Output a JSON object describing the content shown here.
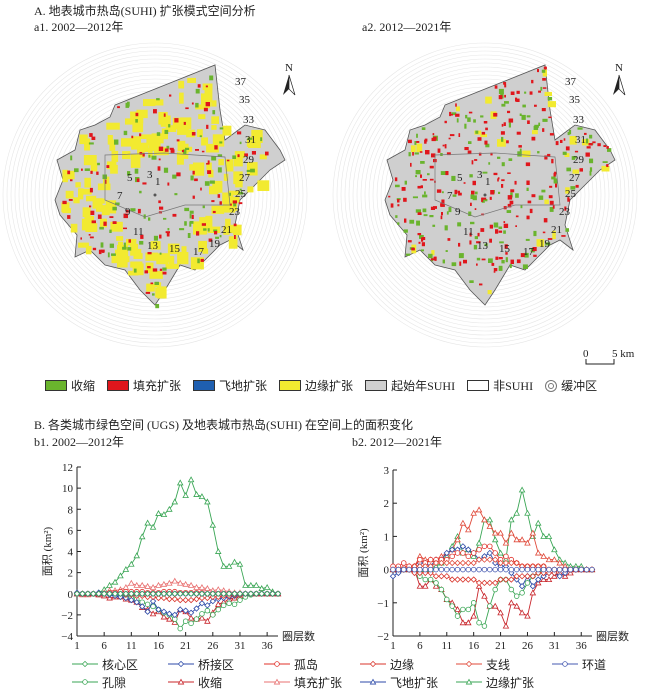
{
  "section_a": {
    "title": "A. 地表城市热岛(SUHI) 扩张模式空间分析",
    "map1_title": "a1. 2002—2012年",
    "map2_title": "a2. 2012—2021年",
    "ring_labels": [
      "1",
      "3",
      "5",
      "7",
      "9",
      "11",
      "13",
      "15",
      "17",
      "19",
      "21",
      "23",
      "25",
      "27",
      "29",
      "31",
      "33",
      "35",
      "37"
    ],
    "north_label": "N",
    "scale_bar": {
      "start": "0",
      "end": "5 km"
    },
    "legend": [
      {
        "label": "收缩",
        "color": "#6ab42d"
      },
      {
        "label": "填充扩张",
        "color": "#e0161c"
      },
      {
        "label": "飞地扩张",
        "color": "#1f5fb0"
      },
      {
        "label": "边缘扩张",
        "color": "#f2ea30"
      },
      {
        "label": "起始年SUHI",
        "color": "#cfcfcf"
      },
      {
        "label": "非SUHI",
        "color": "#ffffff"
      },
      {
        "label": "缓冲区",
        "color": "none"
      }
    ]
  },
  "section_b": {
    "title": "B. 各类城市绿色空间 (UGS) 及地表城市热岛(SUHI) 在空间上的面积变化",
    "chart1_title": "b1. 2002—2012年",
    "chart2_title": "b2. 2012—2021年",
    "legend": [
      {
        "label": "核心区",
        "color": "#3aa655",
        "marker": "diamond"
      },
      {
        "label": "桥接区",
        "color": "#2c4aa8",
        "marker": "diamond"
      },
      {
        "label": "孤岛",
        "color": "#e0302a",
        "marker": "circle"
      },
      {
        "label": "边缘",
        "color": "#d9342b",
        "marker": "diamond"
      },
      {
        "label": "支线",
        "color": "#e04a3a",
        "marker": "diamond"
      },
      {
        "label": "环道",
        "color": "#4458b0",
        "marker": "circle"
      },
      {
        "label": "孔隙",
        "color": "#3aa655",
        "marker": "circle"
      },
      {
        "label": "收缩",
        "color": "#c8242a",
        "marker": "triangle"
      },
      {
        "label": "填充扩张",
        "color": "#e87070",
        "marker": "triangle"
      },
      {
        "label": "飞地扩张",
        "color": "#2c4aa8",
        "marker": "triangle"
      },
      {
        "label": "边缘扩张",
        "color": "#3aa655",
        "marker": "triangle"
      }
    ]
  },
  "chart_data": [
    {
      "type": "line",
      "title": "b1. 2002—2012年",
      "xlabel": "圈层数",
      "ylabel": "面积 (km²)",
      "ylim": [
        -4,
        12
      ],
      "yticks": [
        -4,
        -2,
        0,
        2,
        4,
        6,
        8,
        10,
        12
      ],
      "xlim": [
        1,
        38
      ],
      "xticks": [
        1,
        6,
        11,
        16,
        21,
        26,
        31,
        36
      ],
      "x": [
        1,
        2,
        3,
        4,
        5,
        6,
        7,
        8,
        9,
        10,
        11,
        12,
        13,
        14,
        15,
        16,
        17,
        18,
        19,
        20,
        21,
        22,
        23,
        24,
        25,
        26,
        27,
        28,
        29,
        30,
        31,
        32,
        33,
        34,
        35,
        36,
        37,
        38
      ],
      "series": [
        {
          "name": "边缘扩张",
          "color": "#3aa655",
          "marker": "triangle",
          "values": [
            0,
            0,
            0,
            0,
            0.1,
            0.4,
            0.8,
            1.1,
            1.7,
            2.3,
            2.8,
            3.6,
            5.4,
            6.7,
            6.3,
            7.6,
            7.5,
            8.0,
            8.7,
            10.5,
            9.3,
            10.8,
            9.4,
            9.2,
            8.7,
            6.5,
            4.0,
            2.6,
            2.6,
            3.0,
            2.8,
            0.8,
            0.8,
            0.8,
            0.5,
            0.6,
            0.2,
            0
          ]
        },
        {
          "name": "填充扩张",
          "color": "#e87070",
          "marker": "triangle",
          "values": [
            0,
            -0.1,
            -0.1,
            0,
            -0.1,
            0.1,
            0.3,
            0.3,
            0.4,
            0.6,
            1.0,
            0.8,
            0.8,
            0.7,
            0.6,
            0.8,
            0.9,
            1.0,
            1.2,
            1.0,
            0.9,
            0.8,
            0.6,
            0.6,
            0.5,
            0.3,
            0.4,
            0.3,
            0.2,
            0.1,
            0.1,
            0,
            0,
            0,
            0,
            0,
            0,
            0
          ]
        },
        {
          "name": "收缩",
          "color": "#c8242a",
          "marker": "triangle",
          "values": [
            0,
            0,
            0,
            0,
            -0.1,
            -0.2,
            -0.4,
            -0.3,
            -0.3,
            -0.5,
            -0.6,
            -0.8,
            -1.3,
            -1.5,
            -1.9,
            -1.7,
            -2.2,
            -2.4,
            -2.7,
            -1.5,
            -1.7,
            -2.3,
            -2.4,
            -2.3,
            -2.6,
            -1.8,
            -1.0,
            -0.8,
            -0.5,
            -0.4,
            -0.2,
            0,
            0,
            0,
            0,
            0,
            0,
            0
          ]
        },
        {
          "name": "孔隙",
          "color": "#3aa655",
          "marker": "circle",
          "values": [
            0,
            0,
            0,
            0,
            0,
            0,
            0,
            0,
            -0.1,
            -0.2,
            -0.3,
            -0.5,
            -0.8,
            -1.0,
            -1.2,
            -1.5,
            -1.8,
            -2.0,
            -2.4,
            -3.3,
            -2.6,
            -2.8,
            -2.4,
            -1.9,
            -1.6,
            -2.0,
            -1.5,
            -1.1,
            -0.9,
            -1.0,
            -0.6,
            -0.3,
            -0.1,
            0,
            0,
            0,
            0,
            0
          ]
        },
        {
          "name": "桥接区",
          "color": "#2c4aa8",
          "marker": "diamond",
          "values": [
            0.1,
            0,
            0,
            0,
            0.1,
            0,
            -0.1,
            -0.2,
            -0.3,
            -0.4,
            -0.6,
            -0.8,
            -1.2,
            -1.7,
            -0.7,
            -1.5,
            -1.7,
            -1.9,
            -2.0,
            -1.5,
            -1.6,
            -1.8,
            -1.4,
            -0.9,
            -1.1,
            -0.7,
            -0.5,
            -0.4,
            -0.3,
            -0.2,
            -0.1,
            0,
            0,
            0,
            0,
            0,
            0,
            0
          ]
        },
        {
          "name": "边缘",
          "color": "#d9342b",
          "marker": "diamond",
          "values": [
            0,
            0,
            0,
            0,
            0,
            0,
            0,
            0,
            0,
            -0.1,
            -0.1,
            -0.2,
            -0.2,
            -0.3,
            -0.3,
            -0.4,
            -0.4,
            -0.5,
            -0.5,
            -0.6,
            -0.6,
            -0.6,
            -0.5,
            -0.4,
            -0.4,
            -0.3,
            -0.3,
            -0.2,
            -0.2,
            -0.1,
            -0.1,
            0,
            0,
            0,
            0,
            0,
            0,
            0
          ]
        },
        {
          "name": "孤岛",
          "color": "#e0302a",
          "marker": "circle",
          "values": [
            0,
            0,
            0,
            0,
            0,
            0,
            0.1,
            0.1,
            0.2,
            0.2,
            0.2,
            0.2,
            0.2,
            0.1,
            0.1,
            0.1,
            0.2,
            0.2,
            0.2,
            0.1,
            0.1,
            0.1,
            0.1,
            0.1,
            0,
            0,
            0,
            0,
            0,
            0,
            0,
            0,
            0,
            0,
            0,
            0,
            0,
            0
          ]
        },
        {
          "name": "环道",
          "color": "#4458b0",
          "marker": "circle",
          "values": [
            0,
            0,
            0,
            0,
            0,
            0,
            0,
            0,
            0,
            0,
            0,
            0,
            0,
            0,
            0,
            0,
            0,
            0,
            0,
            0,
            0,
            0,
            0,
            0,
            0,
            0,
            0,
            0,
            0,
            0,
            0,
            0,
            0,
            0,
            0,
            0,
            0,
            0
          ]
        },
        {
          "name": "核心区",
          "color": "#3aa655",
          "marker": "diamond",
          "values": [
            0,
            0,
            0,
            0,
            0,
            0,
            0,
            0,
            0,
            0,
            0,
            0,
            0,
            0,
            0,
            0,
            0,
            0,
            0,
            0,
            0,
            0,
            0,
            0,
            0,
            0,
            0,
            0,
            0,
            0,
            0,
            0,
            0,
            0,
            0,
            0,
            0,
            0
          ]
        }
      ]
    },
    {
      "type": "line",
      "title": "b2. 2012—2021年",
      "xlabel": "圈层数",
      "ylabel": "面积 (km²)",
      "ylim": [
        -2,
        3
      ],
      "yticks": [
        -2,
        -1,
        0,
        1,
        2,
        3
      ],
      "xlim": [
        1,
        38
      ],
      "xticks": [
        1,
        6,
        11,
        16,
        21,
        26,
        31,
        36
      ],
      "x": [
        1,
        2,
        3,
        4,
        5,
        6,
        7,
        8,
        9,
        10,
        11,
        12,
        13,
        14,
        15,
        16,
        17,
        18,
        19,
        20,
        21,
        22,
        23,
        24,
        25,
        26,
        27,
        28,
        29,
        30,
        31,
        32,
        33,
        34,
        35,
        36,
        37,
        38
      ],
      "series": [
        {
          "name": "边缘扩张",
          "color": "#3aa655",
          "marker": "triangle",
          "values": [
            0,
            0,
            0,
            0,
            0,
            0,
            0,
            0,
            0.1,
            0.2,
            0.4,
            0.7,
            1.0,
            0.5,
            0.6,
            0.4,
            0.8,
            1.5,
            1.5,
            0.9,
            0.5,
            0.3,
            1.5,
            1.7,
            2.4,
            1.7,
            1.0,
            1.4,
            1.0,
            1.0,
            0.6,
            0.3,
            0.2,
            0.1,
            0.1,
            0.1,
            0,
            0
          ]
        },
        {
          "name": "填充扩张",
          "color": "#e04a3a",
          "marker": "triangle",
          "values": [
            0,
            0,
            0.1,
            0.1,
            0.1,
            0.4,
            0.3,
            0.3,
            0.3,
            0.4,
            0.5,
            0.6,
            0.9,
            1.4,
            1.2,
            1.7,
            1.8,
            1.5,
            1.3,
            1.1,
            1.1,
            0.8,
            1.1,
            0.9,
            0.9,
            0.8,
            1.1,
            0.5,
            0.4,
            0.3,
            0.3,
            0.2,
            0.1,
            0,
            0,
            0,
            0,
            0
          ]
        },
        {
          "name": "收缩",
          "color": "#c8242a",
          "marker": "triangle",
          "values": [
            0,
            0,
            0,
            0,
            0,
            -0.5,
            -0.5,
            -0.3,
            -0.5,
            -0.6,
            -0.9,
            -1.0,
            -1.2,
            -1.6,
            -1.6,
            -1.4,
            -0.5,
            -0.8,
            -1.1,
            -1.1,
            -1.3,
            -1.7,
            -1.0,
            -1.1,
            -1.3,
            -1.4,
            -0.7,
            -0.4,
            -0.3,
            -0.3,
            -0.2,
            -0.1,
            -0.2,
            -0.1,
            0,
            0,
            0,
            0
          ]
        },
        {
          "name": "孔隙",
          "color": "#3aa655",
          "marker": "circle",
          "values": [
            0,
            0,
            0,
            0,
            0,
            -0.2,
            -0.3,
            -0.3,
            -0.4,
            -0.6,
            -0.9,
            -1.1,
            -1.4,
            -1.2,
            -1.2,
            -1.0,
            -1.6,
            -1.7,
            -1.1,
            -0.6,
            -0.3,
            -0.3,
            -0.6,
            -0.8,
            -0.7,
            -0.4,
            -0.2,
            -0.1,
            0,
            0,
            0,
            0,
            0,
            0,
            0,
            0,
            0,
            0
          ]
        },
        {
          "name": "桥接区",
          "color": "#2c4aa8",
          "marker": "diamond",
          "values": [
            -0.2,
            -0.1,
            0,
            0,
            0,
            0.2,
            0.2,
            0.1,
            0.3,
            0.3,
            0.5,
            0.6,
            0.6,
            0.7,
            0.6,
            0.5,
            0.3,
            0.4,
            0.5,
            0.2,
            0.1,
            0.1,
            -0.1,
            -0.3,
            -0.5,
            -0.2,
            -0.5,
            -0.3,
            -0.2,
            -0.1,
            -0.1,
            -0.2,
            -0.1,
            0,
            0,
            0,
            0,
            0
          ]
        },
        {
          "name": "孤岛",
          "color": "#e0302a",
          "marker": "circle",
          "values": [
            0.1,
            0.1,
            0.2,
            0.1,
            0.1,
            0.3,
            0.2,
            0.3,
            0.3,
            0.3,
            0.3,
            0.4,
            0.5,
            0.5,
            0.4,
            0.5,
            0.6,
            0.7,
            0.7,
            0.5,
            0.3,
            0.4,
            0.3,
            0.2,
            0.1,
            0.1,
            0.1,
            0.1,
            0.1,
            0,
            0,
            0,
            0,
            0,
            0,
            0,
            0,
            0
          ]
        },
        {
          "name": "边缘",
          "color": "#d9342b",
          "marker": "diamond",
          "values": [
            0,
            0,
            0,
            0,
            -0.1,
            -0.1,
            -0.1,
            -0.1,
            -0.2,
            -0.2,
            -0.2,
            -0.3,
            -0.3,
            -0.3,
            -0.3,
            -0.3,
            -0.4,
            -0.4,
            -0.4,
            -0.4,
            -0.3,
            -0.3,
            -0.3,
            -0.2,
            -0.2,
            -0.2,
            -0.2,
            -0.1,
            -0.1,
            -0.1,
            -0.1,
            0,
            0,
            0,
            0,
            0,
            0,
            0
          ]
        },
        {
          "name": "支线",
          "color": "#e04a3a",
          "marker": "diamond",
          "values": [
            0,
            0,
            0,
            0,
            0.1,
            0.1,
            0.1,
            0.1,
            0.2,
            0.2,
            0.2,
            0.2,
            0.2,
            0.2,
            0.2,
            0.2,
            0.3,
            0.3,
            0.3,
            0.3,
            0.2,
            0.2,
            0.2,
            0.2,
            0.1,
            0.1,
            0.1,
            0.1,
            0.1,
            0,
            0,
            0,
            0,
            0,
            0,
            0,
            0,
            0
          ]
        },
        {
          "name": "环道",
          "color": "#4458b0",
          "marker": "circle",
          "values": [
            0,
            0,
            0,
            0,
            0,
            0,
            0,
            0,
            0,
            0,
            0,
            0,
            0,
            0,
            0,
            0,
            0,
            0,
            0,
            0,
            0,
            0,
            0,
            0,
            0,
            0,
            0,
            0,
            0,
            0,
            0,
            0,
            0,
            0,
            0,
            0,
            0,
            0
          ]
        }
      ]
    }
  ]
}
